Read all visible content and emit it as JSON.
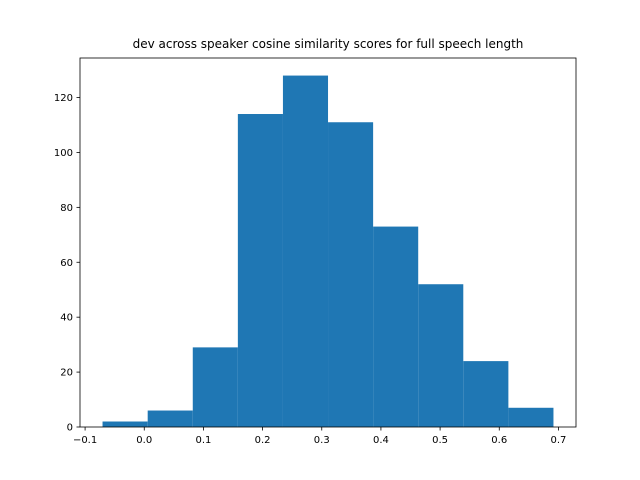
{
  "chart_data": {
    "type": "bar",
    "title": "dev across speaker cosine similarity scores for full speech length",
    "xlabel": "",
    "ylabel": "",
    "bins": [
      {
        "start": -0.0705,
        "end": 0.0058,
        "count": 2
      },
      {
        "start": 0.0058,
        "end": 0.082,
        "count": 6
      },
      {
        "start": 0.082,
        "end": 0.1582,
        "count": 29
      },
      {
        "start": 0.1582,
        "end": 0.2344,
        "count": 114
      },
      {
        "start": 0.2344,
        "end": 0.3106,
        "count": 128
      },
      {
        "start": 0.3106,
        "end": 0.3868,
        "count": 111
      },
      {
        "start": 0.3868,
        "end": 0.463,
        "count": 73
      },
      {
        "start": 0.463,
        "end": 0.5392,
        "count": 52
      },
      {
        "start": 0.5392,
        "end": 0.6154,
        "count": 24
      },
      {
        "start": 0.6154,
        "end": 0.6916,
        "count": 7
      }
    ],
    "xlim": [
      -0.1086,
      0.7297
    ],
    "ylim": [
      0,
      134.4
    ],
    "xticks": [
      -0.1,
      0.0,
      0.1,
      0.2,
      0.3,
      0.4,
      0.5,
      0.6,
      0.7
    ],
    "xtick_labels": [
      "−0.1",
      "0.0",
      "0.1",
      "0.2",
      "0.3",
      "0.4",
      "0.5",
      "0.6",
      "0.7"
    ],
    "yticks": [
      0,
      20,
      40,
      60,
      80,
      100,
      120
    ],
    "ytick_labels": [
      "0",
      "20",
      "40",
      "60",
      "80",
      "100",
      "120"
    ],
    "bar_color": "#1f77b4",
    "grid": false,
    "legend": "none"
  }
}
